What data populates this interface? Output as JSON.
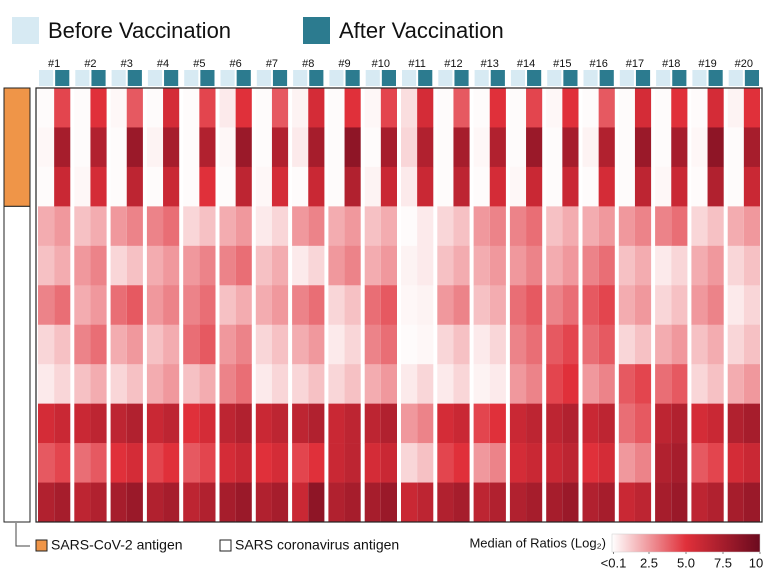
{
  "chart_data": {
    "type": "heatmap",
    "patients": [
      "#1",
      "#2",
      "#3",
      "#4",
      "#5",
      "#6",
      "#7",
      "#8",
      "#9",
      "#10",
      "#11",
      "#12",
      "#13",
      "#14",
      "#15",
      "#16",
      "#17",
      "#18",
      "#19",
      "#20"
    ],
    "row_groups": [
      {
        "name": "SARS-CoV-2 antigen",
        "color": "#ef9548",
        "rows": 3
      },
      {
        "name": "SARS coronavirus antigen",
        "color": "#ffffff",
        "rows": 8
      }
    ],
    "series": [
      {
        "name": "Before Vaccination",
        "color": "#d7eaf3",
        "values": [
          [
            0.1,
            0.2,
            0.1,
            2.0,
            1.5,
            3.0,
            1.0,
            0.5,
            5.5,
            4.0,
            7.0
          ],
          [
            0.1,
            0.1,
            0.2,
            1.5,
            2.5,
            2.0,
            3.0,
            1.5,
            6.0,
            3.5,
            6.5
          ],
          [
            0.2,
            0.1,
            0.1,
            2.5,
            1.0,
            3.5,
            2.0,
            1.0,
            6.5,
            5.0,
            7.5
          ],
          [
            0.1,
            0.3,
            0.1,
            3.0,
            2.0,
            2.5,
            1.5,
            2.0,
            6.0,
            4.5,
            7.0
          ],
          [
            0.1,
            0.1,
            0.1,
            1.0,
            2.5,
            3.0,
            3.5,
            1.5,
            5.0,
            4.0,
            6.5
          ],
          [
            0.5,
            0.2,
            0.1,
            2.0,
            3.0,
            1.5,
            2.5,
            3.0,
            6.5,
            5.5,
            7.5
          ],
          [
            0.1,
            0.1,
            0.2,
            0.5,
            1.5,
            2.0,
            1.0,
            0.5,
            6.0,
            5.0,
            7.0
          ],
          [
            0.3,
            0.5,
            0.1,
            2.5,
            0.5,
            3.0,
            2.0,
            1.0,
            6.5,
            4.5,
            6.0
          ],
          [
            0.1,
            0.1,
            0.1,
            2.0,
            2.5,
            1.0,
            0.5,
            1.0,
            6.0,
            6.0,
            7.0
          ],
          [
            0.2,
            0.1,
            0.3,
            1.5,
            2.0,
            3.5,
            3.0,
            2.0,
            6.5,
            5.5,
            7.5
          ],
          [
            0.8,
            1.0,
            0.5,
            0.1,
            0.3,
            0.2,
            0.1,
            0.5,
            2.5,
            1.0,
            6.0
          ],
          [
            0.1,
            0.1,
            0.1,
            1.0,
            1.5,
            2.5,
            1.0,
            0.5,
            5.5,
            4.5,
            7.0
          ],
          [
            0.1,
            0.2,
            0.1,
            2.5,
            2.0,
            1.5,
            0.5,
            0.3,
            4.5,
            2.5,
            6.5
          ],
          [
            0.1,
            0.1,
            0.2,
            3.0,
            2.5,
            3.5,
            3.0,
            2.5,
            6.0,
            5.5,
            7.0
          ],
          [
            0.2,
            0.1,
            0.1,
            1.5,
            2.0,
            3.0,
            4.0,
            4.5,
            6.5,
            6.0,
            7.5
          ],
          [
            0.1,
            0.3,
            0.1,
            2.0,
            3.0,
            4.0,
            3.5,
            2.5,
            6.0,
            5.0,
            7.0
          ],
          [
            0.1,
            0.1,
            0.1,
            2.5,
            1.5,
            2.0,
            1.0,
            4.0,
            3.5,
            2.5,
            6.0
          ],
          [
            0.1,
            0.1,
            0.2,
            3.0,
            0.5,
            1.0,
            2.0,
            3.5,
            6.5,
            7.0,
            7.5
          ],
          [
            0.1,
            0.2,
            0.1,
            1.0,
            2.0,
            2.5,
            1.5,
            1.0,
            5.5,
            4.0,
            6.5
          ],
          [
            0.3,
            0.1,
            0.1,
            2.0,
            1.0,
            0.5,
            1.0,
            2.0,
            7.0,
            5.5,
            7.5
          ]
        ]
      },
      {
        "name": "After Vaccination",
        "color": "#2c7b8f",
        "values": [
          [
            4.5,
            7.5,
            6.0,
            2.5,
            2.0,
            3.5,
            1.5,
            1.0,
            6.0,
            4.5,
            7.5
          ],
          [
            5.0,
            7.0,
            5.5,
            2.0,
            3.0,
            2.5,
            3.5,
            2.0,
            6.5,
            4.0,
            7.0
          ],
          [
            4.0,
            8.0,
            6.5,
            3.0,
            1.5,
            4.0,
            2.5,
            1.5,
            7.0,
            5.5,
            8.0
          ],
          [
            5.5,
            7.5,
            6.0,
            3.5,
            2.5,
            3.0,
            2.0,
            2.5,
            6.5,
            5.0,
            7.5
          ],
          [
            4.5,
            7.0,
            5.0,
            1.5,
            3.0,
            3.5,
            4.0,
            2.0,
            5.5,
            4.5,
            7.0
          ],
          [
            5.0,
            8.0,
            6.5,
            2.5,
            3.5,
            2.0,
            3.0,
            3.5,
            7.0,
            6.0,
            8.0
          ],
          [
            4.0,
            7.0,
            5.5,
            1.0,
            2.0,
            2.5,
            1.5,
            1.0,
            6.5,
            5.5,
            7.5
          ],
          [
            5.5,
            7.5,
            6.0,
            3.0,
            1.0,
            3.5,
            2.5,
            1.5,
            7.0,
            5.0,
            8.5
          ],
          [
            5.0,
            8.5,
            7.0,
            2.5,
            3.0,
            1.5,
            1.0,
            1.5,
            6.5,
            6.5,
            7.5
          ],
          [
            4.5,
            7.5,
            6.0,
            2.0,
            2.5,
            4.0,
            3.5,
            2.5,
            7.0,
            6.0,
            8.0
          ],
          [
            5.5,
            7.0,
            6.0,
            0.5,
            0.5,
            0.3,
            0.2,
            1.0,
            3.0,
            1.5,
            6.5
          ],
          [
            4.0,
            7.5,
            6.5,
            1.5,
            2.0,
            3.0,
            1.5,
            1.0,
            6.0,
            5.0,
            7.5
          ],
          [
            5.0,
            7.0,
            5.5,
            3.0,
            2.5,
            2.0,
            1.0,
            0.5,
            5.0,
            3.0,
            7.0
          ],
          [
            4.5,
            8.0,
            6.0,
            3.5,
            3.0,
            4.0,
            3.5,
            3.0,
            6.5,
            6.0,
            7.5
          ],
          [
            5.0,
            7.5,
            6.0,
            2.0,
            2.5,
            3.5,
            4.5,
            5.0,
            7.0,
            6.5,
            8.0
          ],
          [
            4.0,
            7.0,
            5.5,
            2.5,
            3.5,
            4.5,
            4.0,
            3.0,
            6.5,
            5.5,
            7.5
          ],
          [
            5.5,
            8.0,
            6.5,
            3.0,
            2.0,
            2.5,
            1.5,
            4.5,
            4.0,
            3.0,
            6.5
          ],
          [
            5.0,
            7.5,
            6.0,
            3.5,
            1.0,
            1.5,
            2.5,
            4.0,
            7.0,
            7.5,
            8.0
          ],
          [
            5.5,
            8.5,
            7.0,
            1.5,
            2.5,
            3.0,
            2.0,
            1.5,
            6.0,
            4.5,
            7.0
          ],
          [
            5.0,
            7.5,
            6.0,
            2.5,
            1.5,
            1.0,
            1.5,
            2.5,
            7.5,
            6.0,
            8.0
          ]
        ]
      }
    ],
    "colorbar": {
      "title": "Median of Ratios (Log₂)",
      "lim": [
        0,
        10
      ],
      "colors": [
        "#ffffff",
        "#e0303a",
        "#6b0a1e"
      ],
      "ticks": [
        {
          "value": 0.1,
          "label": "<0.1"
        },
        2.5,
        {
          "value": 5,
          "label": "5.0"
        },
        7.5,
        10
      ]
    }
  }
}
